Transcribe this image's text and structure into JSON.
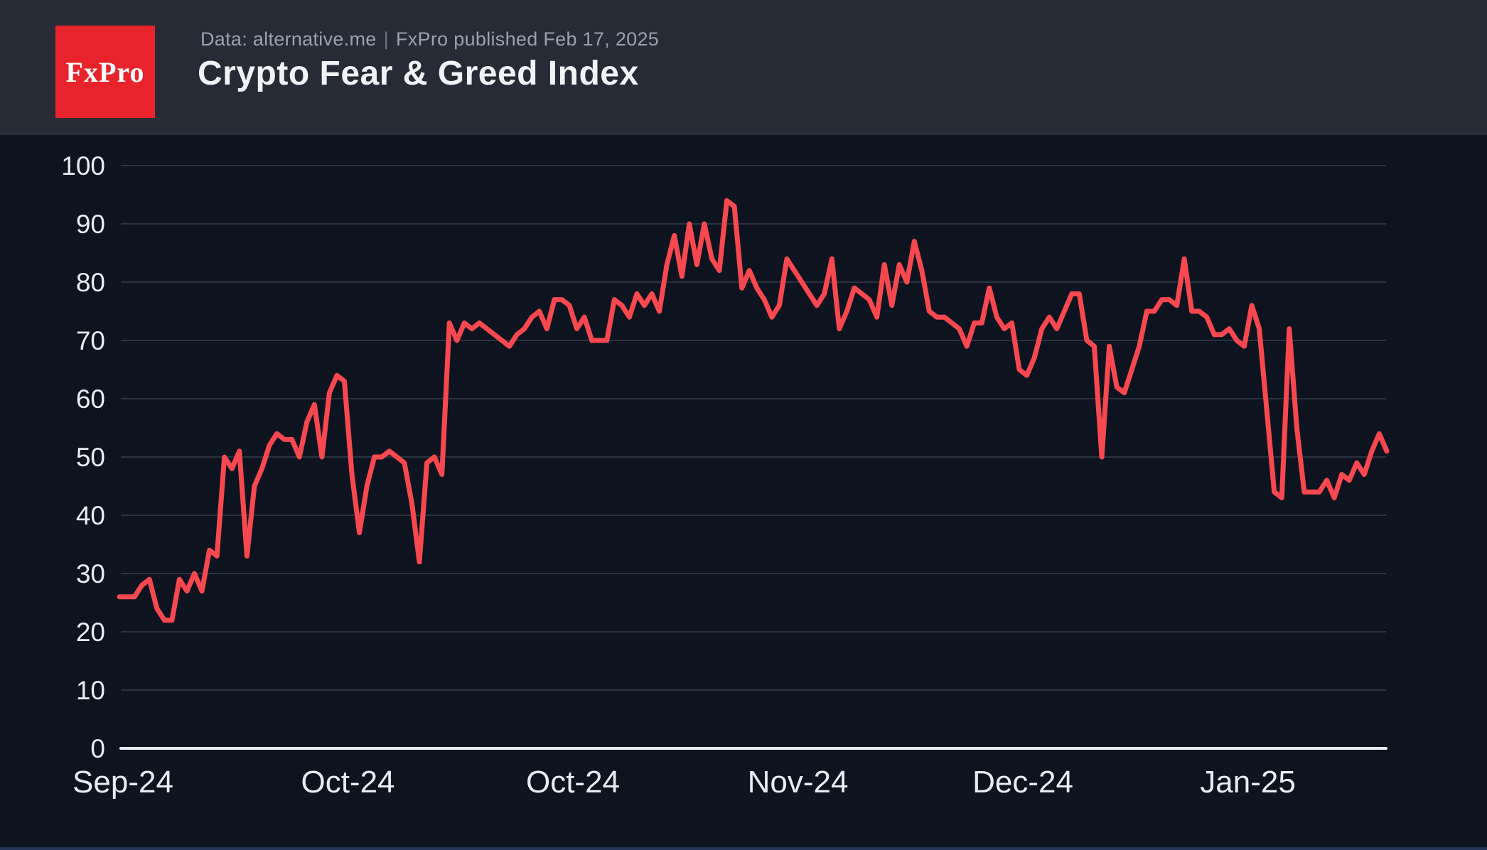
{
  "header": {
    "logo_text": "FxPro",
    "source_prefix": "Data: alternative.me",
    "separator": "|",
    "source_suffix": "FxPro published Feb 17, 2025",
    "title": "Crypto Fear & Greed Index"
  },
  "colors": {
    "header_background": "#262b36",
    "page_background": "#0e141f",
    "logo_red": "#e9232b",
    "line_red": "#f8484f",
    "gridline": "#2b3240",
    "axis": "#e9ecf1",
    "tick_label": "#e9ecf1",
    "subtitle_gray": "#9aa2ae"
  },
  "chart_data": {
    "type": "line",
    "title": "Crypto Fear & Greed Index",
    "series_name": "Crypto Fear & Greed Index",
    "xlabel": "",
    "ylabel": "",
    "ylim": [
      0,
      100
    ],
    "grid": "horizontal",
    "legend": "none",
    "line_color": "#f8484f",
    "y_ticks": [
      0,
      10,
      20,
      30,
      40,
      50,
      60,
      70,
      80,
      90,
      100
    ],
    "x_tick_labels": [
      "Sep-24",
      "Oct-24",
      "Oct-24",
      "Nov-24",
      "Dec-24",
      "Jan-25"
    ],
    "x_tick_indices": [
      0,
      30,
      60,
      90,
      120,
      150
    ],
    "values": [
      26,
      26,
      26,
      28,
      29,
      24,
      22,
      22,
      29,
      27,
      30,
      27,
      34,
      33,
      50,
      48,
      51,
      33,
      45,
      48,
      52,
      54,
      53,
      53,
      50,
      56,
      59,
      50,
      61,
      64,
      63,
      47,
      37,
      45,
      50,
      50,
      51,
      50,
      49,
      42,
      32,
      49,
      50,
      47,
      73,
      70,
      73,
      72,
      73,
      72,
      71,
      70,
      69,
      71,
      72,
      74,
      75,
      72,
      77,
      77,
      76,
      72,
      74,
      70,
      70,
      70,
      77,
      76,
      74,
      78,
      76,
      78,
      75,
      83,
      88,
      81,
      90,
      83,
      90,
      84,
      82,
      94,
      93,
      79,
      82,
      79,
      77,
      74,
      76,
      84,
      82,
      80,
      78,
      76,
      78,
      84,
      72,
      75,
      79,
      78,
      77,
      74,
      83,
      76,
      83,
      80,
      87,
      82,
      75,
      74,
      74,
      73,
      72,
      69,
      73,
      73,
      79,
      74,
      72,
      73,
      65,
      64,
      67,
      72,
      74,
      72,
      75,
      78,
      78,
      70,
      69,
      50,
      69,
      62,
      61,
      65,
      69,
      75,
      75,
      77,
      77,
      76,
      84,
      75,
      75,
      74,
      71,
      71,
      72,
      70,
      69,
      76,
      72,
      58,
      44,
      43,
      72,
      55,
      44,
      44,
      44,
      46,
      43,
      47,
      46,
      49,
      47,
      51,
      54,
      51
    ]
  }
}
